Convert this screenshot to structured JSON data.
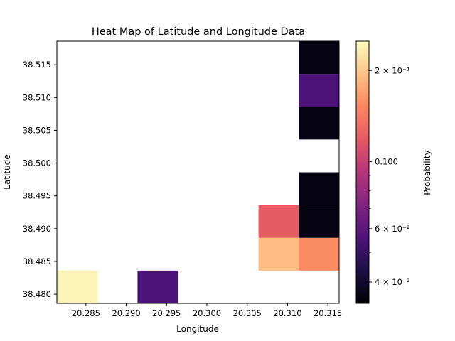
{
  "chart_data": {
    "type": "heatmap",
    "title": "Heat Map of Latitude and Longitude Data",
    "xlabel": "Longitude",
    "ylabel": "Latitude",
    "xlim": [
      20.2814,
      20.3164
    ],
    "ylim": [
      38.4786,
      38.5186
    ],
    "x_ticks": [
      {
        "value": 20.285,
        "label": "20.285"
      },
      {
        "value": 20.29,
        "label": "20.290"
      },
      {
        "value": 20.295,
        "label": "20.295"
      },
      {
        "value": 20.3,
        "label": "20.300"
      },
      {
        "value": 20.305,
        "label": "20.305"
      },
      {
        "value": 20.31,
        "label": "20.310"
      },
      {
        "value": 20.315,
        "label": "20.315"
      }
    ],
    "y_ticks": [
      {
        "value": 38.48,
        "label": "38.480"
      },
      {
        "value": 38.485,
        "label": "38.485"
      },
      {
        "value": 38.49,
        "label": "38.490"
      },
      {
        "value": 38.495,
        "label": "38.495"
      },
      {
        "value": 38.5,
        "label": "38.500"
      },
      {
        "value": 38.505,
        "label": "38.505"
      },
      {
        "value": 38.51,
        "label": "38.510"
      },
      {
        "value": 38.515,
        "label": "38.515"
      }
    ],
    "bin_width_x": 0.005,
    "bin_width_y": 0.005,
    "cells": [
      {
        "x0": 20.2814,
        "y0": 38.4786,
        "value": 0.24
      },
      {
        "x0": 20.2914,
        "y0": 38.4786,
        "value": 0.055
      },
      {
        "x0": 20.3064,
        "y0": 38.4836,
        "value": 0.19
      },
      {
        "x0": 20.3114,
        "y0": 38.4836,
        "value": 0.155
      },
      {
        "x0": 20.3064,
        "y0": 38.4886,
        "value": 0.12
      },
      {
        "x0": 20.3114,
        "y0": 38.4886,
        "value": 0.036
      },
      {
        "x0": 20.3114,
        "y0": 38.4936,
        "value": 0.036
      },
      {
        "x0": 20.3114,
        "y0": 38.5036,
        "value": 0.036
      },
      {
        "x0": 20.3114,
        "y0": 38.5086,
        "value": 0.055
      },
      {
        "x0": 20.3114,
        "y0": 38.5136,
        "value": 0.036
      }
    ],
    "colorbar": {
      "label": "Probability",
      "scale": "log",
      "colormap": "magma",
      "vmin": 0.034,
      "vmax": 0.25,
      "major_ticks": [
        {
          "value": 0.04,
          "label": "4 × 10⁻²"
        },
        {
          "value": 0.06,
          "label": "6 × 10⁻²"
        },
        {
          "value": 0.1,
          "label": "0.100"
        },
        {
          "value": 0.2,
          "label": "2 × 10⁻¹"
        }
      ],
      "minor_ticks": [
        0.05,
        0.07,
        0.08,
        0.09
      ]
    }
  }
}
